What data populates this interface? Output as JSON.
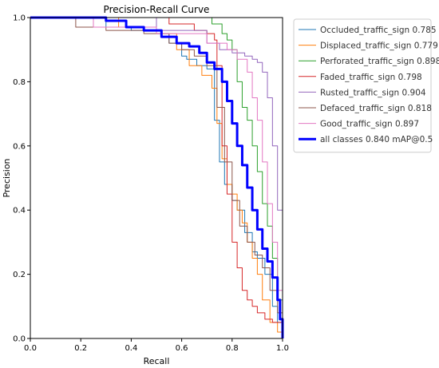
{
  "chart_data": {
    "type": "line",
    "title": "Precision-Recall Curve",
    "xlabel": "Recall",
    "ylabel": "Precision",
    "xlim": [
      0,
      1
    ],
    "ylim": [
      0,
      1
    ],
    "xticks": [
      "0.0",
      "0.2",
      "0.4",
      "0.6",
      "0.8",
      "1.0"
    ],
    "yticks": [
      "0.0",
      "0.2",
      "0.4",
      "0.6",
      "0.8",
      "1.0"
    ],
    "grid": false,
    "legend_position": "outside-right",
    "series": [
      {
        "name": "Occluded_traffic_sign 0.785",
        "color": "#1f77b4",
        "width": 1,
        "x": [
          0,
          0.25,
          0.3,
          0.4,
          0.5,
          0.55,
          0.6,
          0.62,
          0.66,
          0.7,
          0.73,
          0.75,
          0.77,
          0.8,
          0.82,
          0.85,
          0.88,
          0.9,
          0.93,
          0.96,
          0.98,
          1.0
        ],
        "y": [
          1,
          1,
          0.97,
          0.96,
          0.95,
          0.92,
          0.88,
          0.87,
          0.85,
          0.84,
          0.68,
          0.55,
          0.48,
          0.43,
          0.4,
          0.33,
          0.27,
          0.25,
          0.2,
          0.1,
          0.05,
          0.0
        ]
      },
      {
        "name": "Displaced_traffic_sign 0.779",
        "color": "#ff7f0e",
        "width": 1,
        "x": [
          0,
          0.2,
          0.35,
          0.5,
          0.58,
          0.63,
          0.68,
          0.72,
          0.74,
          0.76,
          0.78,
          0.8,
          0.82,
          0.84,
          0.86,
          0.88,
          0.9,
          0.92,
          0.95,
          0.98,
          1.0
        ],
        "y": [
          1,
          1,
          0.97,
          0.95,
          0.9,
          0.85,
          0.82,
          0.78,
          0.67,
          0.56,
          0.48,
          0.45,
          0.4,
          0.36,
          0.3,
          0.25,
          0.2,
          0.12,
          0.05,
          0.02,
          0.0
        ]
      },
      {
        "name": "Perforated_traffic_sign 0.898",
        "color": "#2ca02c",
        "width": 1,
        "x": [
          0,
          0.4,
          0.6,
          0.7,
          0.72,
          0.76,
          0.78,
          0.8,
          0.82,
          0.84,
          0.86,
          0.88,
          0.9,
          0.92,
          0.94,
          0.96,
          0.98,
          1.0
        ],
        "y": [
          1,
          1,
          1,
          1,
          0.98,
          0.95,
          0.93,
          0.9,
          0.8,
          0.72,
          0.68,
          0.6,
          0.52,
          0.42,
          0.35,
          0.25,
          0.12,
          0.0
        ]
      },
      {
        "name": "Faded_traffic_sign 0.798",
        "color": "#d62728",
        "width": 1,
        "x": [
          0,
          0.3,
          0.45,
          0.55,
          0.65,
          0.7,
          0.73,
          0.74,
          0.76,
          0.78,
          0.8,
          0.82,
          0.84,
          0.86,
          0.88,
          0.9,
          0.93,
          0.96,
          1.0
        ],
        "y": [
          1,
          1,
          1,
          0.98,
          0.96,
          0.95,
          0.93,
          0.85,
          0.6,
          0.45,
          0.3,
          0.22,
          0.15,
          0.12,
          0.1,
          0.08,
          0.06,
          0.05,
          0.0
        ]
      },
      {
        "name": "Rusted_traffic_sign 0.904",
        "color": "#9467bd",
        "width": 1,
        "x": [
          0,
          0.3,
          0.5,
          0.7,
          0.75,
          0.8,
          0.85,
          0.88,
          0.9,
          0.92,
          0.94,
          0.96,
          0.98,
          1.0
        ],
        "y": [
          1,
          1,
          0.96,
          0.92,
          0.9,
          0.89,
          0.88,
          0.87,
          0.86,
          0.83,
          0.75,
          0.6,
          0.4,
          0.0
        ]
      },
      {
        "name": "Defaced_traffic_sign 0.818",
        "color": "#8c564b",
        "width": 1,
        "x": [
          0,
          0.18,
          0.3,
          0.45,
          0.55,
          0.6,
          0.65,
          0.7,
          0.74,
          0.77,
          0.8,
          0.83,
          0.86,
          0.89,
          0.92,
          0.95,
          0.98,
          1.0
        ],
        "y": [
          1,
          0.97,
          0.96,
          0.95,
          0.92,
          0.9,
          0.88,
          0.85,
          0.72,
          0.55,
          0.43,
          0.35,
          0.3,
          0.26,
          0.22,
          0.15,
          0.08,
          0.0
        ]
      },
      {
        "name": "Good_traffic_sign 0.897",
        "color": "#e377c2",
        "width": 1,
        "x": [
          0,
          0.25,
          0.5,
          0.7,
          0.78,
          0.82,
          0.86,
          0.88,
          0.9,
          0.92,
          0.94,
          0.96,
          0.98,
          1.0
        ],
        "y": [
          1,
          0.97,
          0.95,
          0.92,
          0.9,
          0.87,
          0.83,
          0.75,
          0.68,
          0.55,
          0.42,
          0.3,
          0.15,
          0.0
        ]
      },
      {
        "name": "all classes 0.840 mAP@0.5",
        "color": "#0000ff",
        "width": 3,
        "x": [
          0,
          0.2,
          0.3,
          0.38,
          0.45,
          0.52,
          0.58,
          0.63,
          0.67,
          0.7,
          0.73,
          0.76,
          0.78,
          0.8,
          0.82,
          0.84,
          0.86,
          0.88,
          0.9,
          0.92,
          0.94,
          0.96,
          0.98,
          0.99,
          1.0
        ],
        "y": [
          1,
          1,
          0.99,
          0.97,
          0.96,
          0.94,
          0.92,
          0.91,
          0.89,
          0.86,
          0.84,
          0.8,
          0.74,
          0.67,
          0.6,
          0.54,
          0.47,
          0.4,
          0.34,
          0.28,
          0.24,
          0.19,
          0.12,
          0.06,
          0.0
        ]
      }
    ]
  }
}
